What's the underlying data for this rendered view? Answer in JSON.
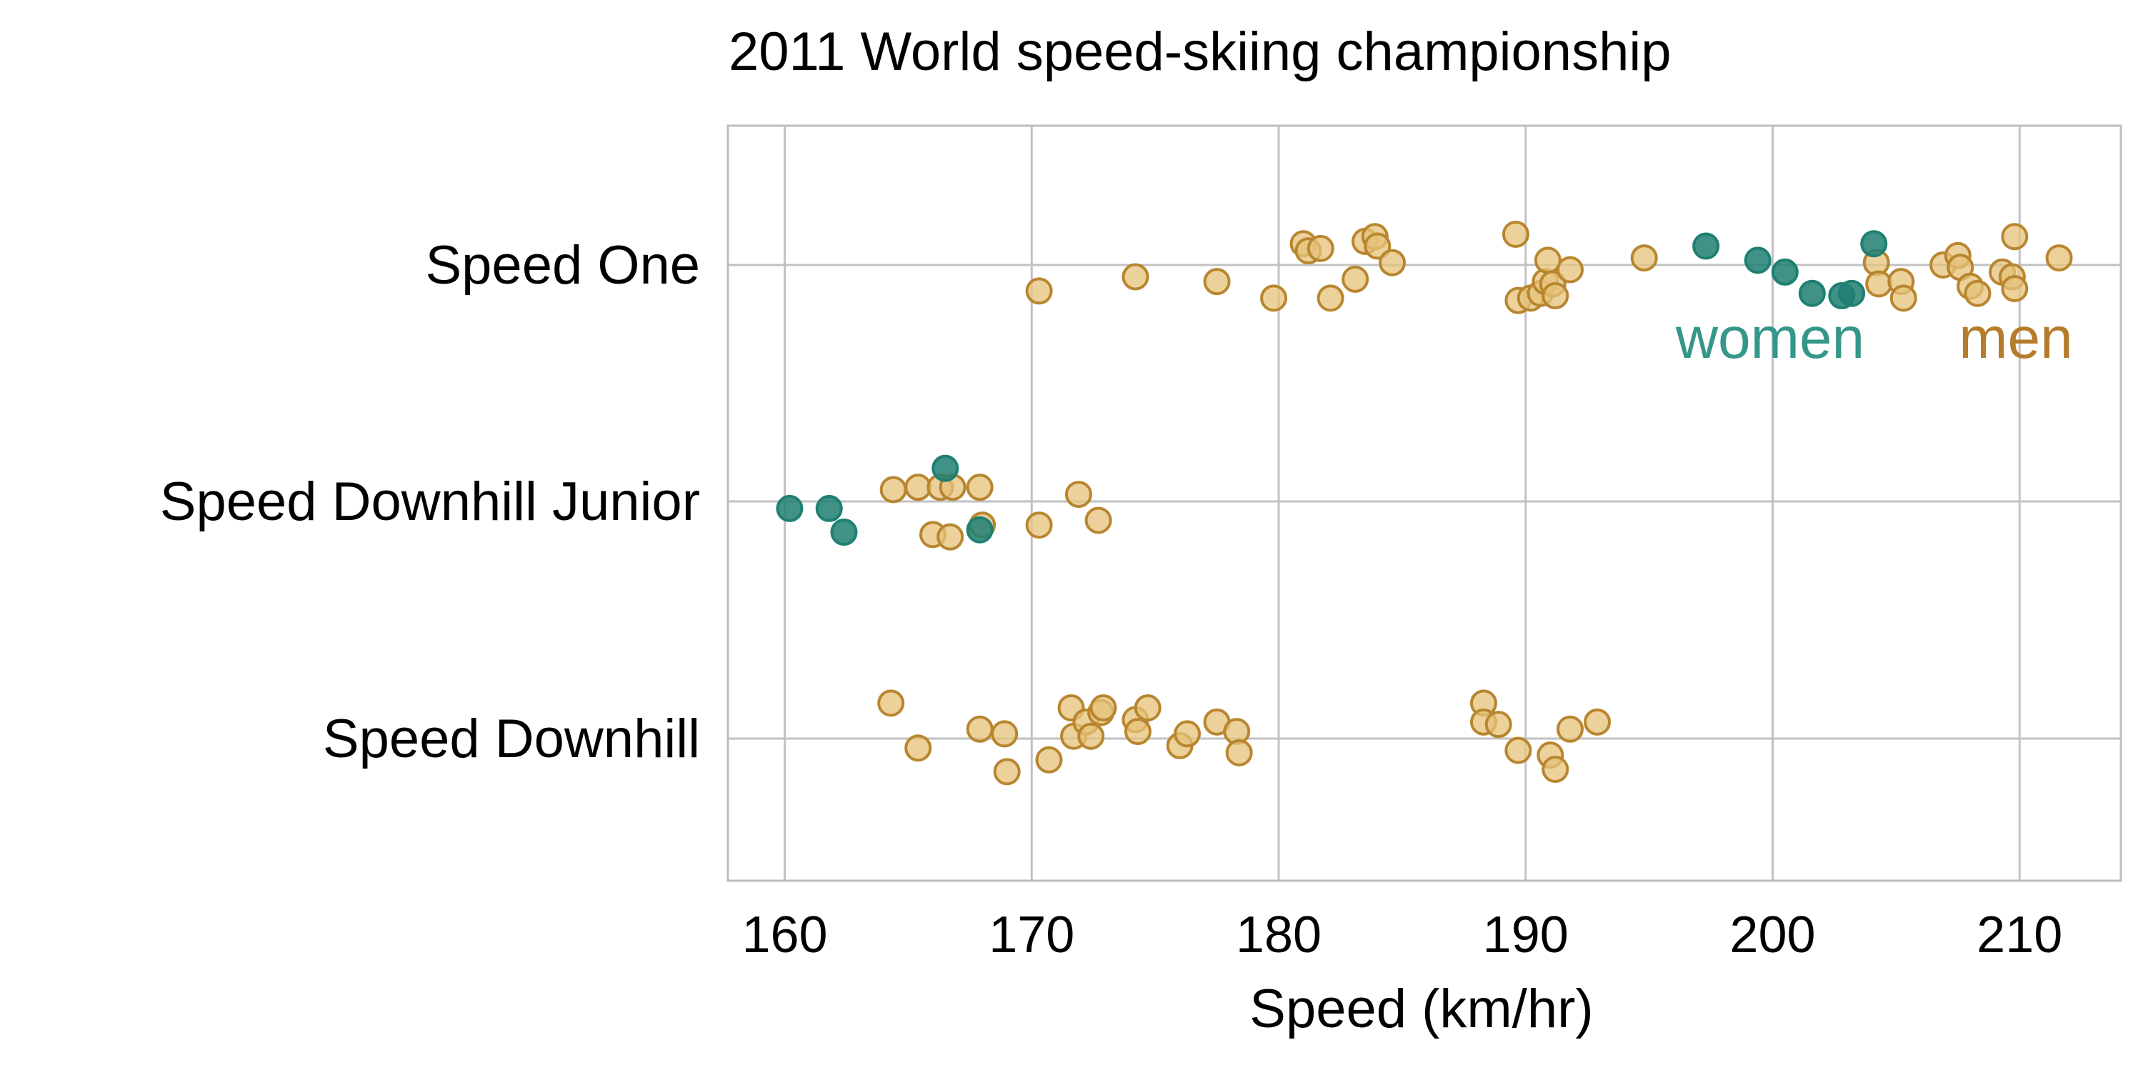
{
  "chart_data": {
    "type": "scatter",
    "title": "2011 World speed-skiing championship",
    "xlabel": "Speed (km/hr)",
    "ylabel": "",
    "xlim": [
      157.7,
      214.1
    ],
    "xticks": [
      160,
      170,
      180,
      190,
      200,
      210
    ],
    "categories": [
      "Speed One",
      "Speed Downhill Junior",
      "Speed Downhill"
    ],
    "grid": true,
    "legend": "direct labels near Speed One row",
    "colors": {
      "women": "#1f7f72",
      "men_fill": "#e6c17a",
      "men_stroke": "#b8862f",
      "women_label": "#35968a",
      "men_label": "#b57c2c",
      "grid": "#c2c2c2",
      "frame": "#bdbdbd"
    },
    "series": [
      {
        "name": "women",
        "points": [
          {
            "category": "Speed One",
            "x": 197.3,
            "jitter": 0.08
          },
          {
            "category": "Speed One",
            "x": 199.4,
            "jitter": 0.02
          },
          {
            "category": "Speed One",
            "x": 200.5,
            "jitter": -0.03
          },
          {
            "category": "Speed One",
            "x": 201.6,
            "jitter": -0.12
          },
          {
            "category": "Speed One",
            "x": 202.8,
            "jitter": -0.13
          },
          {
            "category": "Speed One",
            "x": 203.2,
            "jitter": -0.12
          },
          {
            "category": "Speed One",
            "x": 204.1,
            "jitter": 0.09
          },
          {
            "category": "Speed Downhill Junior",
            "x": 160.2,
            "jitter": -0.03
          },
          {
            "category": "Speed Downhill Junior",
            "x": 161.8,
            "jitter": -0.03
          },
          {
            "category": "Speed Downhill Junior",
            "x": 162.4,
            "jitter": -0.13
          },
          {
            "category": "Speed Downhill Junior",
            "x": 166.5,
            "jitter": 0.14
          },
          {
            "category": "Speed Downhill Junior",
            "x": 167.9,
            "jitter": -0.12
          }
        ]
      },
      {
        "name": "men",
        "points": [
          {
            "category": "Speed One",
            "x": 170.3,
            "jitter": -0.11
          },
          {
            "category": "Speed One",
            "x": 174.2,
            "jitter": -0.05
          },
          {
            "category": "Speed One",
            "x": 177.5,
            "jitter": -0.07
          },
          {
            "category": "Speed One",
            "x": 179.8,
            "jitter": -0.14
          },
          {
            "category": "Speed One",
            "x": 181.0,
            "jitter": 0.09
          },
          {
            "category": "Speed One",
            "x": 181.2,
            "jitter": 0.06
          },
          {
            "category": "Speed One",
            "x": 181.7,
            "jitter": 0.07
          },
          {
            "category": "Speed One",
            "x": 182.1,
            "jitter": -0.14
          },
          {
            "category": "Speed One",
            "x": 183.1,
            "jitter": -0.06
          },
          {
            "category": "Speed One",
            "x": 183.5,
            "jitter": 0.1
          },
          {
            "category": "Speed One",
            "x": 183.9,
            "jitter": 0.12
          },
          {
            "category": "Speed One",
            "x": 184.0,
            "jitter": 0.08
          },
          {
            "category": "Speed One",
            "x": 184.6,
            "jitter": 0.01
          },
          {
            "category": "Speed One",
            "x": 189.6,
            "jitter": 0.13
          },
          {
            "category": "Speed One",
            "x": 189.7,
            "jitter": -0.15
          },
          {
            "category": "Speed One",
            "x": 190.2,
            "jitter": -0.14
          },
          {
            "category": "Speed One",
            "x": 190.6,
            "jitter": -0.12
          },
          {
            "category": "Speed One",
            "x": 190.8,
            "jitter": -0.07
          },
          {
            "category": "Speed One",
            "x": 190.9,
            "jitter": 0.02
          },
          {
            "category": "Speed One",
            "x": 191.1,
            "jitter": -0.08
          },
          {
            "category": "Speed One",
            "x": 191.2,
            "jitter": -0.13
          },
          {
            "category": "Speed One",
            "x": 191.8,
            "jitter": -0.02
          },
          {
            "category": "Speed One",
            "x": 194.8,
            "jitter": 0.03
          },
          {
            "category": "Speed One",
            "x": 204.2,
            "jitter": 0.01
          },
          {
            "category": "Speed One",
            "x": 204.3,
            "jitter": -0.08
          },
          {
            "category": "Speed One",
            "x": 205.2,
            "jitter": -0.07
          },
          {
            "category": "Speed One",
            "x": 205.3,
            "jitter": -0.14
          },
          {
            "category": "Speed One",
            "x": 206.9,
            "jitter": 0.0
          },
          {
            "category": "Speed One",
            "x": 207.5,
            "jitter": 0.04
          },
          {
            "category": "Speed One",
            "x": 207.6,
            "jitter": -0.01
          },
          {
            "category": "Speed One",
            "x": 208.0,
            "jitter": -0.09
          },
          {
            "category": "Speed One",
            "x": 208.3,
            "jitter": -0.12
          },
          {
            "category": "Speed One",
            "x": 209.3,
            "jitter": -0.03
          },
          {
            "category": "Speed One",
            "x": 209.7,
            "jitter": -0.05
          },
          {
            "category": "Speed One",
            "x": 209.8,
            "jitter": 0.12
          },
          {
            "category": "Speed One",
            "x": 209.8,
            "jitter": -0.1
          },
          {
            "category": "Speed One",
            "x": 211.6,
            "jitter": 0.03
          },
          {
            "category": "Speed Downhill Junior",
            "x": 164.4,
            "jitter": 0.05
          },
          {
            "category": "Speed Downhill Junior",
            "x": 165.4,
            "jitter": 0.06
          },
          {
            "category": "Speed Downhill Junior",
            "x": 166.0,
            "jitter": -0.14
          },
          {
            "category": "Speed Downhill Junior",
            "x": 166.3,
            "jitter": 0.06
          },
          {
            "category": "Speed Downhill Junior",
            "x": 166.8,
            "jitter": 0.06
          },
          {
            "category": "Speed Downhill Junior",
            "x": 166.7,
            "jitter": -0.15
          },
          {
            "category": "Speed Downhill Junior",
            "x": 167.9,
            "jitter": 0.06
          },
          {
            "category": "Speed Downhill Junior",
            "x": 168.0,
            "jitter": -0.1
          },
          {
            "category": "Speed Downhill Junior",
            "x": 170.3,
            "jitter": -0.1
          },
          {
            "category": "Speed Downhill Junior",
            "x": 171.9,
            "jitter": 0.03
          },
          {
            "category": "Speed Downhill Junior",
            "x": 172.7,
            "jitter": -0.08
          },
          {
            "category": "Speed Downhill",
            "x": 164.3,
            "jitter": 0.15
          },
          {
            "category": "Speed Downhill",
            "x": 165.4,
            "jitter": -0.04
          },
          {
            "category": "Speed Downhill",
            "x": 167.9,
            "jitter": 0.04
          },
          {
            "category": "Speed Downhill",
            "x": 168.9,
            "jitter": 0.02
          },
          {
            "category": "Speed Downhill",
            "x": 169.0,
            "jitter": -0.14
          },
          {
            "category": "Speed Downhill",
            "x": 170.7,
            "jitter": -0.09
          },
          {
            "category": "Speed Downhill",
            "x": 171.6,
            "jitter": 0.13
          },
          {
            "category": "Speed Downhill",
            "x": 171.7,
            "jitter": 0.01
          },
          {
            "category": "Speed Downhill",
            "x": 172.2,
            "jitter": 0.07
          },
          {
            "category": "Speed Downhill",
            "x": 172.4,
            "jitter": 0.01
          },
          {
            "category": "Speed Downhill",
            "x": 172.8,
            "jitter": 0.11
          },
          {
            "category": "Speed Downhill",
            "x": 172.9,
            "jitter": 0.13
          },
          {
            "category": "Speed Downhill",
            "x": 174.2,
            "jitter": 0.08
          },
          {
            "category": "Speed Downhill",
            "x": 174.3,
            "jitter": 0.03
          },
          {
            "category": "Speed Downhill",
            "x": 174.7,
            "jitter": 0.13
          },
          {
            "category": "Speed Downhill",
            "x": 176.0,
            "jitter": -0.03
          },
          {
            "category": "Speed Downhill",
            "x": 176.3,
            "jitter": 0.02
          },
          {
            "category": "Speed Downhill",
            "x": 177.5,
            "jitter": 0.07
          },
          {
            "category": "Speed Downhill",
            "x": 178.3,
            "jitter": 0.03
          },
          {
            "category": "Speed Downhill",
            "x": 178.4,
            "jitter": -0.06
          },
          {
            "category": "Speed Downhill",
            "x": 188.3,
            "jitter": 0.15
          },
          {
            "category": "Speed Downhill",
            "x": 188.3,
            "jitter": 0.07
          },
          {
            "category": "Speed Downhill",
            "x": 188.9,
            "jitter": 0.06
          },
          {
            "category": "Speed Downhill",
            "x": 189.7,
            "jitter": -0.05
          },
          {
            "category": "Speed Downhill",
            "x": 191.0,
            "jitter": -0.07
          },
          {
            "category": "Speed Downhill",
            "x": 191.2,
            "jitter": -0.13
          },
          {
            "category": "Speed Downhill",
            "x": 191.8,
            "jitter": 0.04
          },
          {
            "category": "Speed Downhill",
            "x": 192.9,
            "jitter": 0.07
          }
        ]
      }
    ],
    "annotations": [
      {
        "text": "women",
        "series": "women"
      },
      {
        "text": "men",
        "series": "men"
      }
    ]
  }
}
